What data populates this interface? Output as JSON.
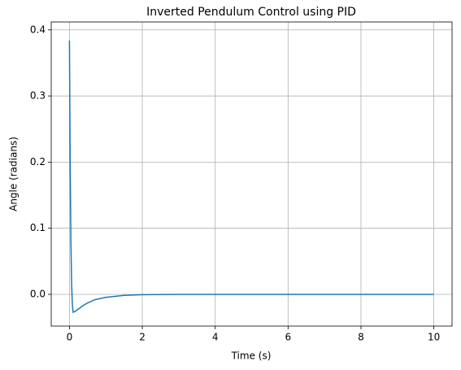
{
  "chart_data": {
    "type": "line",
    "title": "Inverted Pendulum Control using PID",
    "xlabel": "Time (s)",
    "ylabel": "Angle (radians)",
    "x": [
      0,
      0.02,
      0.04,
      0.06,
      0.08,
      0.1,
      0.15,
      0.2,
      0.3,
      0.4,
      0.5,
      0.7,
      1.0,
      1.5,
      2,
      3,
      4,
      6,
      8,
      10
    ],
    "series": [
      {
        "color": "#1f77b4",
        "values": [
          0.384,
          0.2,
          0.08,
          0.015,
          -0.015,
          -0.027,
          -0.026,
          -0.024,
          -0.02,
          -0.016,
          -0.013,
          -0.008,
          -0.0045,
          -0.0015,
          -0.0005,
          -0.0001,
          0,
          0,
          0,
          0
        ]
      }
    ],
    "xlim": [
      -0.5,
      10.5
    ],
    "ylim": [
      -0.048,
      0.412
    ],
    "xticks": [
      0,
      2,
      4,
      6,
      8,
      10
    ],
    "yticks": [
      {
        "value": 0,
        "label": "0.0"
      },
      0.1,
      0.2,
      0.3,
      0.4
    ],
    "grid": true
  }
}
